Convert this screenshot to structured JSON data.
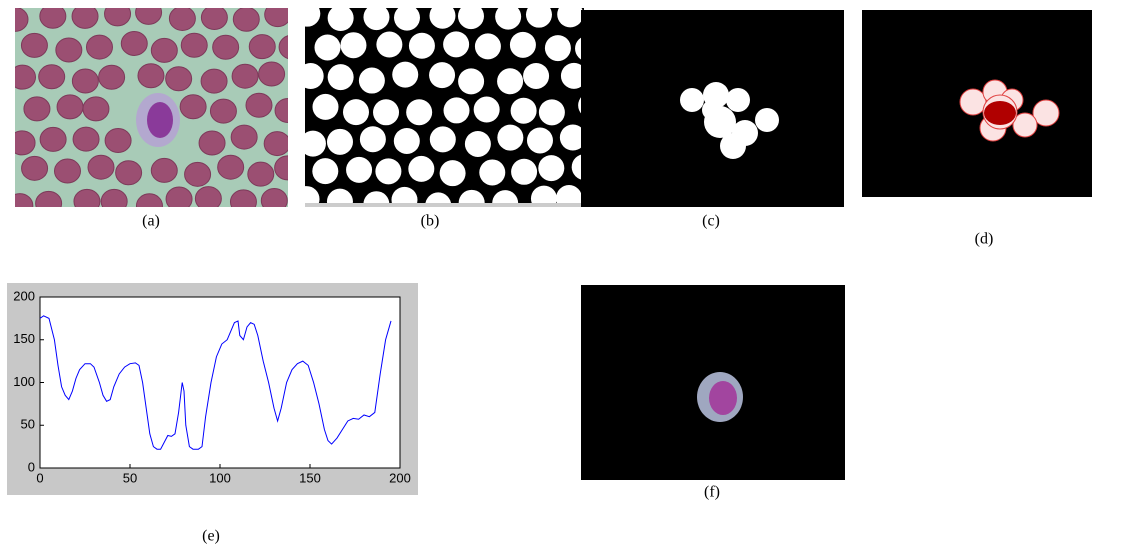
{
  "captions": [
    "(a)",
    "(b)",
    "(c)",
    "(d)",
    "(e)",
    "(f)"
  ],
  "chart_data": {
    "type": "line",
    "x": [
      0,
      2,
      5,
      8,
      10,
      12,
      14,
      16,
      18,
      20,
      22,
      25,
      28,
      30,
      33,
      35,
      37,
      39,
      41,
      44,
      47,
      50,
      53,
      55,
      57,
      59,
      61,
      63,
      65,
      67,
      69,
      71,
      73,
      75,
      77,
      79,
      80,
      81,
      83,
      85,
      88,
      90,
      92,
      95,
      98,
      101,
      104,
      106,
      108,
      110,
      111,
      113,
      115,
      117,
      119,
      121,
      124,
      127,
      130,
      132,
      134,
      137,
      140,
      143,
      146,
      149,
      152,
      155,
      158,
      160,
      162,
      165,
      168,
      171,
      174,
      177,
      180,
      183,
      186,
      189,
      192,
      195
    ],
    "values": [
      175,
      178,
      175,
      150,
      120,
      95,
      85,
      80,
      90,
      105,
      115,
      122,
      122,
      118,
      100,
      85,
      78,
      80,
      95,
      110,
      118,
      122,
      123,
      120,
      100,
      70,
      40,
      25,
      22,
      22,
      30,
      38,
      37,
      40,
      65,
      100,
      90,
      50,
      25,
      22,
      22,
      25,
      60,
      100,
      130,
      145,
      150,
      160,
      170,
      172,
      155,
      150,
      165,
      170,
      168,
      155,
      125,
      100,
      70,
      55,
      70,
      100,
      115,
      122,
      125,
      120,
      100,
      75,
      45,
      32,
      28,
      35,
      45,
      55,
      58,
      57,
      62,
      60,
      65,
      110,
      150,
      172
    ],
    "color": "#0000ff",
    "xlim": [
      0,
      200
    ],
    "ylim": [
      0,
      200
    ],
    "xticks": [
      0,
      50,
      100,
      150,
      200
    ],
    "yticks": [
      0,
      50,
      100,
      150,
      200
    ]
  }
}
